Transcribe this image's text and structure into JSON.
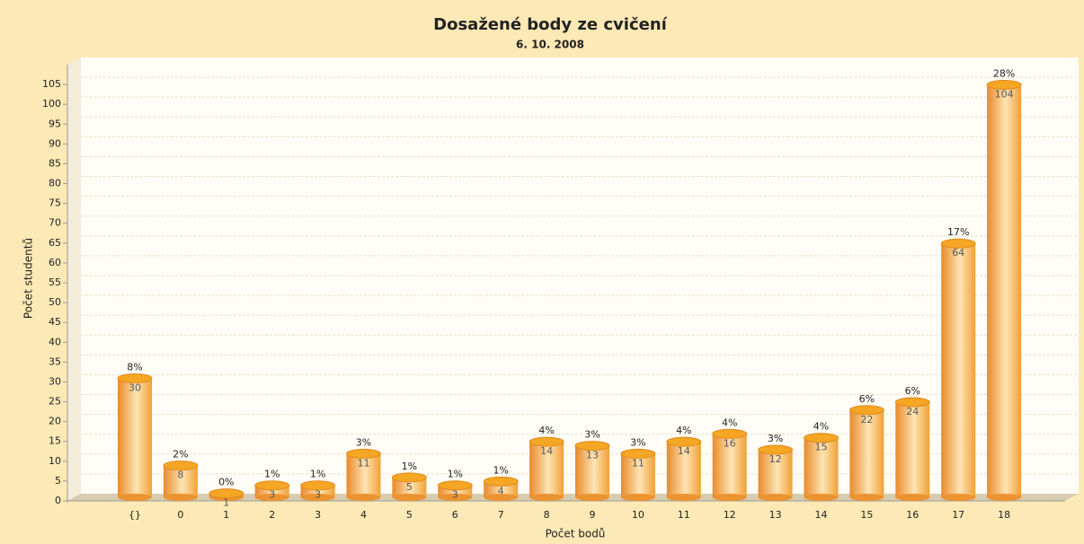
{
  "chart_data": {
    "type": "bar",
    "title": "Dosažené body ze cvičení",
    "subtitle": "6. 10. 2008",
    "x_label": "Počet bodů",
    "y_label": "Počet studentů",
    "categories": [
      "{}",
      "0",
      "1",
      "2",
      "3",
      "4",
      "5",
      "6",
      "7",
      "8",
      "9",
      "10",
      "11",
      "12",
      "13",
      "14",
      "15",
      "16",
      "17",
      "18"
    ],
    "values": [
      30,
      8,
      1,
      3,
      3,
      11,
      5,
      3,
      4,
      14,
      13,
      11,
      14,
      16,
      12,
      15,
      22,
      24,
      64,
      104
    ],
    "percent_labels": [
      "8%",
      "2%",
      "0%",
      "1%",
      "1%",
      "3%",
      "1%",
      "1%",
      "1%",
      "4%",
      "3%",
      "3%",
      "4%",
      "4%",
      "3%",
      "4%",
      "6%",
      "6%",
      "17%",
      "28%"
    ],
    "color": "#f5a623",
    "ylim": [
      0,
      110
    ],
    "yticks": [
      0,
      5,
      10,
      15,
      20,
      25,
      30,
      35,
      40,
      45,
      50,
      55,
      60,
      65,
      70,
      75,
      80,
      85,
      90,
      95,
      100,
      105
    ],
    "grid": true
  }
}
